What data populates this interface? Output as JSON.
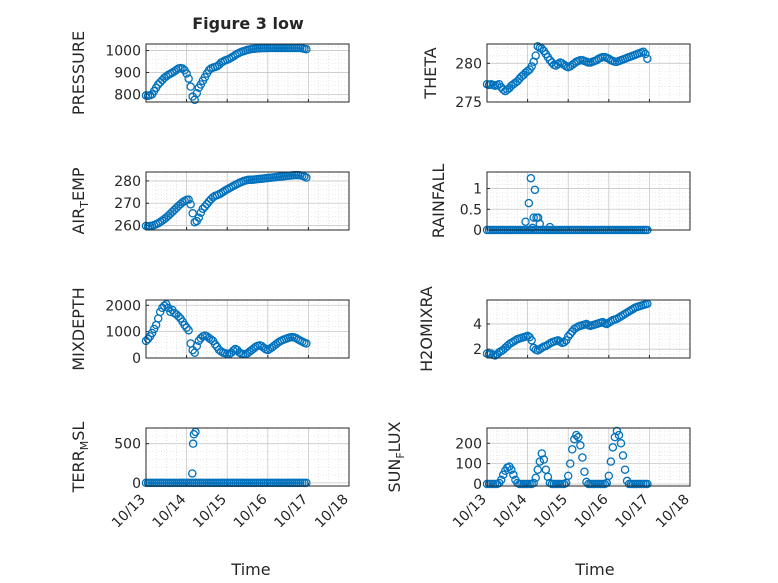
{
  "figure": {
    "title": "Figure 3 low",
    "xlabel": "Time",
    "x_tick_labels": [
      "10/13",
      "10/14",
      "10/15",
      "10/16",
      "10/17",
      "10/18"
    ],
    "marker_color": "#0072BD",
    "grid": true,
    "minor_grid": true
  },
  "chart_data": [
    {
      "type": "scatter",
      "ylabel": "PRESSURE",
      "ylim": [
        765,
        1030
      ],
      "yticks": [
        800,
        900,
        1000
      ],
      "x": [
        13.0,
        13.05,
        13.1,
        13.15,
        13.2,
        13.25,
        13.3,
        13.35,
        13.4,
        13.45,
        13.5,
        13.55,
        13.6,
        13.65,
        13.7,
        13.75,
        13.8,
        13.85,
        13.9,
        13.95,
        14.0,
        14.05,
        14.1,
        14.15,
        14.2,
        14.25,
        14.3,
        14.35,
        14.4,
        14.45,
        14.5,
        14.55,
        14.6,
        14.65,
        14.7,
        14.75,
        14.8,
        14.85,
        14.9,
        14.95,
        15.0,
        15.05,
        15.1,
        15.15,
        15.2,
        15.25,
        15.3,
        15.35,
        15.4,
        15.45,
        15.5,
        15.55,
        15.6,
        15.65,
        15.7,
        15.75,
        15.8,
        15.85,
        15.9,
        15.95,
        16.0,
        16.05,
        16.1,
        16.15,
        16.2,
        16.25,
        16.3,
        16.35,
        16.4,
        16.45,
        16.5,
        16.55,
        16.6,
        16.65,
        16.7,
        16.75,
        16.8,
        16.85,
        16.9,
        16.95
      ],
      "y": [
        795,
        793,
        796,
        800,
        815,
        830,
        845,
        855,
        865,
        875,
        882,
        889,
        894,
        899,
        905,
        912,
        918,
        920,
        918,
        910,
        895,
        872,
        835,
        790,
        775,
        805,
        830,
        845,
        862,
        878,
        895,
        910,
        918,
        922,
        925,
        928,
        935,
        945,
        950,
        955,
        958,
        962,
        968,
        973,
        980,
        985,
        990,
        994,
        997,
        1000,
        1003,
        1005,
        1007,
        1008,
        1009,
        1010,
        1010,
        1011,
        1011,
        1011,
        1012,
        1012,
        1012,
        1012,
        1012,
        1012,
        1012,
        1012,
        1012,
        1012,
        1012,
        1012,
        1012,
        1012,
        1012,
        1012,
        1012,
        1010,
        1008,
        1006
      ]
    },
    {
      "type": "scatter",
      "ylabel": "THETA",
      "ylim": [
        275,
        282.5
      ],
      "yticks": [
        275,
        280
      ],
      "x": [
        13.0,
        13.05,
        13.1,
        13.15,
        13.2,
        13.25,
        13.3,
        13.35,
        13.4,
        13.45,
        13.5,
        13.55,
        13.6,
        13.65,
        13.7,
        13.75,
        13.8,
        13.85,
        13.9,
        13.95,
        14.0,
        14.05,
        14.1,
        14.15,
        14.2,
        14.25,
        14.3,
        14.35,
        14.4,
        14.45,
        14.5,
        14.55,
        14.6,
        14.65,
        14.7,
        14.75,
        14.8,
        14.85,
        14.9,
        14.95,
        15.0,
        15.05,
        15.1,
        15.15,
        15.2,
        15.25,
        15.3,
        15.35,
        15.4,
        15.45,
        15.5,
        15.55,
        15.6,
        15.65,
        15.7,
        15.75,
        15.8,
        15.85,
        15.9,
        15.95,
        16.0,
        16.05,
        16.1,
        16.15,
        16.2,
        16.25,
        16.3,
        16.35,
        16.4,
        16.45,
        16.5,
        16.55,
        16.6,
        16.65,
        16.7,
        16.75,
        16.8,
        16.85,
        16.9,
        16.95
      ],
      "y": [
        277.3,
        277.2,
        277.3,
        277.2,
        277.1,
        277.2,
        277.3,
        276.9,
        276.6,
        276.4,
        276.6,
        276.8,
        277.1,
        277.3,
        277.5,
        277.7,
        278.0,
        278.3,
        278.5,
        278.8,
        279.0,
        279.2,
        279.6,
        280.2,
        281.0,
        282.2,
        282.0,
        281.9,
        281.6,
        281.2,
        280.8,
        280.4,
        280.1,
        279.8,
        279.7,
        279.9,
        280.1,
        280.0,
        279.8,
        279.6,
        279.5,
        279.6,
        279.8,
        280.0,
        280.2,
        280.3,
        280.4,
        280.4,
        280.3,
        280.2,
        280.1,
        280.1,
        280.2,
        280.3,
        280.4,
        280.6,
        280.7,
        280.8,
        280.8,
        280.7,
        280.6,
        280.4,
        280.3,
        280.2,
        280.2,
        280.3,
        280.4,
        280.5,
        280.6,
        280.7,
        280.8,
        280.9,
        281.0,
        281.1,
        281.2,
        281.3,
        281.4,
        281.5,
        281.2,
        280.6
      ]
    },
    {
      "type": "scatter",
      "ylabel": "AIR_TEMP",
      "ylim": [
        258,
        284
      ],
      "yticks": [
        260,
        270,
        280
      ],
      "x": [
        13.0,
        13.05,
        13.1,
        13.15,
        13.2,
        13.25,
        13.3,
        13.35,
        13.4,
        13.45,
        13.5,
        13.55,
        13.6,
        13.65,
        13.7,
        13.75,
        13.8,
        13.85,
        13.9,
        13.95,
        14.0,
        14.05,
        14.1,
        14.15,
        14.2,
        14.25,
        14.3,
        14.35,
        14.4,
        14.45,
        14.5,
        14.55,
        14.6,
        14.65,
        14.7,
        14.75,
        14.8,
        14.85,
        14.9,
        14.95,
        15.0,
        15.05,
        15.1,
        15.15,
        15.2,
        15.25,
        15.3,
        15.35,
        15.4,
        15.45,
        15.5,
        15.55,
        15.6,
        15.65,
        15.7,
        15.75,
        15.8,
        15.85,
        15.9,
        15.95,
        16.0,
        16.05,
        16.1,
        16.15,
        16.2,
        16.25,
        16.3,
        16.35,
        16.4,
        16.45,
        16.5,
        16.55,
        16.6,
        16.65,
        16.7,
        16.75,
        16.8,
        16.85,
        16.9,
        16.95
      ],
      "y": [
        259.8,
        259.6,
        259.8,
        259.9,
        260.2,
        260.6,
        261.0,
        261.6,
        262.2,
        262.9,
        263.6,
        264.4,
        265.3,
        266.2,
        267.0,
        267.9,
        268.8,
        269.6,
        270.4,
        271.0,
        271.5,
        271.6,
        269.5,
        265.5,
        261.5,
        262.0,
        263.5,
        265.8,
        267.5,
        268.5,
        269.6,
        270.8,
        271.8,
        272.6,
        273.3,
        273.6,
        274.0,
        274.5,
        275.1,
        275.7,
        276.2,
        276.7,
        277.2,
        277.7,
        278.2,
        278.7,
        279.1,
        279.5,
        279.9,
        280.2,
        280.4,
        280.5,
        280.5,
        280.6,
        280.7,
        280.8,
        280.9,
        281.0,
        281.1,
        281.2,
        281.3,
        281.4,
        281.5,
        281.6,
        281.7,
        281.8,
        281.9,
        282.0,
        282.1,
        282.2,
        282.3,
        282.4,
        282.5,
        282.6,
        282.6,
        282.6,
        282.5,
        282.3,
        282.0,
        281.5
      ]
    },
    {
      "type": "scatter",
      "ylabel": "RAINFALL",
      "ylim": [
        0,
        1.4
      ],
      "yticks": [
        0,
        0.5,
        1
      ],
      "x": [
        13.0,
        13.05,
        13.1,
        13.15,
        13.2,
        13.25,
        13.3,
        13.35,
        13.4,
        13.45,
        13.5,
        13.55,
        13.6,
        13.65,
        13.7,
        13.75,
        13.8,
        13.85,
        13.9,
        13.95,
        14.0,
        14.05,
        14.1,
        14.15,
        14.2,
        14.25,
        14.3,
        14.35,
        14.4,
        14.45,
        14.5,
        14.55,
        14.6,
        14.65,
        14.7,
        14.75,
        14.8,
        14.85,
        14.9,
        14.95,
        15.0,
        15.05,
        15.1,
        15.15,
        15.2,
        15.25,
        15.3,
        15.35,
        15.4,
        15.45,
        15.5,
        15.55,
        15.6,
        15.65,
        15.7,
        15.75,
        15.8,
        15.85,
        15.9,
        15.95,
        16.0,
        16.05,
        16.1,
        16.15,
        16.2,
        16.25,
        16.3,
        16.35,
        16.4,
        16.45,
        16.5,
        16.55,
        16.6,
        16.65,
        16.7,
        16.75,
        16.8,
        16.85,
        16.9,
        16.95,
        13.95,
        14.03,
        14.08,
        14.12,
        14.15,
        14.18,
        14.22,
        14.26,
        14.3,
        14.55
      ],
      "y": [
        0,
        0,
        0,
        0,
        0,
        0,
        0,
        0,
        0,
        0,
        0,
        0,
        0,
        0,
        0,
        0,
        0,
        0,
        0,
        0,
        0,
        0,
        0,
        0,
        0,
        0,
        0,
        0,
        0,
        0,
        0,
        0,
        0,
        0,
        0,
        0,
        0,
        0,
        0,
        0,
        0,
        0,
        0,
        0,
        0,
        0,
        0,
        0,
        0,
        0,
        0,
        0,
        0,
        0,
        0,
        0,
        0,
        0,
        0,
        0,
        0,
        0,
        0,
        0,
        0,
        0,
        0,
        0,
        0,
        0,
        0,
        0,
        0,
        0,
        0,
        0,
        0,
        0,
        0,
        0,
        0.2,
        0.65,
        1.25,
        0.05,
        0.3,
        0.97,
        0.3,
        0.3,
        0.15,
        0.07
      ]
    },
    {
      "type": "scatter",
      "ylabel": "MIXDEPTH",
      "ylim": [
        0,
        2200
      ],
      "yticks": [
        0,
        1000,
        2000
      ],
      "x": [
        13.0,
        13.05,
        13.1,
        13.15,
        13.2,
        13.25,
        13.3,
        13.35,
        13.4,
        13.45,
        13.5,
        13.55,
        13.6,
        13.65,
        13.7,
        13.75,
        13.8,
        13.85,
        13.9,
        13.95,
        14.0,
        14.05,
        14.1,
        14.15,
        14.2,
        14.25,
        14.3,
        14.35,
        14.4,
        14.45,
        14.5,
        14.55,
        14.6,
        14.65,
        14.7,
        14.75,
        14.8,
        14.85,
        14.9,
        14.95,
        15.0,
        15.05,
        15.1,
        15.15,
        15.2,
        15.25,
        15.3,
        15.35,
        15.4,
        15.45,
        15.5,
        15.55,
        15.6,
        15.65,
        15.7,
        15.75,
        15.8,
        15.85,
        15.9,
        15.95,
        16.0,
        16.05,
        16.1,
        16.15,
        16.2,
        16.25,
        16.3,
        16.35,
        16.4,
        16.45,
        16.5,
        16.55,
        16.6,
        16.65,
        16.7,
        16.75,
        16.8,
        16.85,
        16.9,
        16.95
      ],
      "y": [
        650,
        720,
        820,
        950,
        1100,
        1250,
        1500,
        1750,
        1900,
        1980,
        2040,
        1900,
        1750,
        1820,
        1700,
        1650,
        1580,
        1500,
        1380,
        1250,
        1150,
        1050,
        550,
        300,
        200,
        450,
        650,
        750,
        820,
        850,
        820,
        760,
        700,
        650,
        520,
        420,
        310,
        250,
        200,
        180,
        160,
        150,
        200,
        280,
        340,
        300,
        210,
        160,
        150,
        140,
        180,
        240,
        300,
        360,
        420,
        460,
        480,
        450,
        390,
        330,
        300,
        350,
        400,
        460,
        520,
        580,
        630,
        670,
        700,
        730,
        760,
        780,
        790,
        780,
        750,
        700,
        660,
        620,
        580,
        550
      ]
    },
    {
      "type": "scatter",
      "ylabel": "H2OMIXRA",
      "ylim": [
        1.3,
        5.9
      ],
      "yticks": [
        2,
        4
      ],
      "x": [
        13.0,
        13.05,
        13.1,
        13.15,
        13.2,
        13.25,
        13.3,
        13.35,
        13.4,
        13.45,
        13.5,
        13.55,
        13.6,
        13.65,
        13.7,
        13.75,
        13.8,
        13.85,
        13.9,
        13.95,
        14.0,
        14.05,
        14.1,
        14.15,
        14.2,
        14.25,
        14.3,
        14.35,
        14.4,
        14.45,
        14.5,
        14.55,
        14.6,
        14.65,
        14.7,
        14.75,
        14.8,
        14.85,
        14.9,
        14.95,
        15.0,
        15.05,
        15.1,
        15.15,
        15.2,
        15.25,
        15.3,
        15.35,
        15.4,
        15.45,
        15.5,
        15.55,
        15.6,
        15.65,
        15.7,
        15.75,
        15.8,
        15.85,
        15.9,
        15.95,
        16.0,
        16.05,
        16.1,
        16.15,
        16.2,
        16.25,
        16.3,
        16.35,
        16.4,
        16.45,
        16.5,
        16.55,
        16.6,
        16.65,
        16.7,
        16.75,
        16.8,
        16.85,
        16.9,
        16.95
      ],
      "y": [
        1.65,
        1.6,
        1.65,
        1.55,
        1.5,
        1.6,
        1.75,
        1.85,
        1.95,
        2.1,
        2.25,
        2.4,
        2.5,
        2.6,
        2.7,
        2.8,
        2.85,
        2.9,
        2.95,
        3.0,
        3.05,
        2.95,
        2.7,
        2.1,
        1.95,
        1.9,
        2.0,
        2.1,
        2.2,
        2.25,
        2.35,
        2.45,
        2.55,
        2.6,
        2.65,
        2.7,
        2.6,
        2.5,
        2.55,
        2.7,
        3.0,
        3.2,
        3.4,
        3.6,
        3.7,
        3.8,
        3.85,
        3.9,
        3.95,
        4.0,
        3.9,
        3.85,
        3.9,
        3.95,
        4.0,
        4.05,
        4.1,
        4.15,
        4.05,
        4.0,
        4.1,
        4.2,
        4.3,
        4.35,
        4.4,
        4.5,
        4.6,
        4.7,
        4.8,
        4.9,
        5.0,
        5.1,
        5.2,
        5.3,
        5.35,
        5.4,
        5.45,
        5.5,
        5.55,
        5.6
      ]
    },
    {
      "type": "scatter",
      "ylabel": "TERR_MSL",
      "ylim": [
        -40,
        700
      ],
      "yticks": [
        0,
        500
      ],
      "x": [
        13.0,
        13.05,
        13.1,
        13.15,
        13.2,
        13.25,
        13.3,
        13.35,
        13.4,
        13.45,
        13.5,
        13.55,
        13.6,
        13.65,
        13.7,
        13.75,
        13.8,
        13.85,
        13.9,
        13.95,
        14.0,
        14.05,
        14.1,
        14.15,
        14.2,
        14.25,
        14.3,
        14.35,
        14.4,
        14.45,
        14.5,
        14.55,
        14.6,
        14.65,
        14.7,
        14.75,
        14.8,
        14.85,
        14.9,
        14.95,
        15.0,
        15.05,
        15.1,
        15.15,
        15.2,
        15.25,
        15.3,
        15.35,
        15.4,
        15.45,
        15.5,
        15.55,
        15.6,
        15.65,
        15.7,
        15.75,
        15.8,
        15.85,
        15.9,
        15.95,
        16.0,
        16.05,
        16.1,
        16.15,
        16.2,
        16.25,
        16.3,
        16.35,
        16.4,
        16.45,
        16.5,
        16.55,
        16.6,
        16.65,
        16.7,
        16.75,
        16.8,
        16.85,
        16.9,
        16.95,
        14.14,
        14.16,
        14.18,
        14.22
      ],
      "y": [
        0,
        0,
        0,
        0,
        0,
        0,
        0,
        0,
        0,
        0,
        0,
        0,
        0,
        0,
        0,
        0,
        0,
        0,
        0,
        0,
        0,
        0,
        0,
        0,
        0,
        0,
        0,
        0,
        0,
        0,
        0,
        0,
        0,
        0,
        0,
        0,
        0,
        0,
        0,
        0,
        0,
        0,
        0,
        0,
        0,
        0,
        0,
        0,
        0,
        0,
        0,
        0,
        0,
        0,
        0,
        0,
        0,
        0,
        0,
        0,
        0,
        0,
        0,
        0,
        0,
        0,
        0,
        0,
        0,
        0,
        0,
        0,
        0,
        0,
        0,
        0,
        0,
        0,
        0,
        0,
        120,
        500,
        620,
        650
      ]
    },
    {
      "type": "scatter",
      "ylabel": "SUN_FLUX",
      "ylim": [
        -10,
        275
      ],
      "yticks": [
        0,
        100,
        200
      ],
      "x": [
        13.0,
        13.05,
        13.1,
        13.15,
        13.2,
        13.25,
        13.3,
        13.35,
        13.4,
        13.45,
        13.5,
        13.55,
        13.6,
        13.65,
        13.7,
        13.75,
        13.8,
        13.85,
        13.9,
        13.95,
        14.0,
        14.05,
        14.1,
        14.15,
        14.2,
        14.25,
        14.3,
        14.35,
        14.4,
        14.45,
        14.5,
        14.55,
        14.6,
        14.65,
        14.7,
        14.75,
        14.8,
        14.85,
        14.9,
        14.95,
        15.0,
        15.05,
        15.1,
        15.15,
        15.2,
        15.25,
        15.3,
        15.35,
        15.4,
        15.45,
        15.5,
        15.55,
        15.6,
        15.65,
        15.7,
        15.75,
        15.8,
        15.85,
        15.9,
        15.95,
        16.0,
        16.05,
        16.1,
        16.15,
        16.2,
        16.25,
        16.3,
        16.35,
        16.4,
        16.45,
        16.5,
        16.55,
        16.6,
        16.65,
        16.7,
        16.75,
        16.8,
        16.85,
        16.9,
        16.95
      ],
      "y": [
        0,
        0,
        0,
        0,
        0,
        0,
        5,
        20,
        45,
        65,
        80,
        85,
        70,
        45,
        20,
        5,
        0,
        0,
        0,
        0,
        0,
        0,
        0,
        5,
        30,
        70,
        110,
        150,
        120,
        70,
        35,
        5,
        0,
        0,
        0,
        0,
        0,
        0,
        0,
        5,
        40,
        100,
        170,
        220,
        240,
        230,
        190,
        130,
        60,
        10,
        0,
        0,
        0,
        0,
        0,
        0,
        0,
        0,
        0,
        5,
        40,
        110,
        180,
        230,
        260,
        240,
        200,
        140,
        70,
        15,
        0,
        0,
        0,
        0,
        0,
        0,
        0,
        0,
        0,
        0
      ]
    }
  ]
}
